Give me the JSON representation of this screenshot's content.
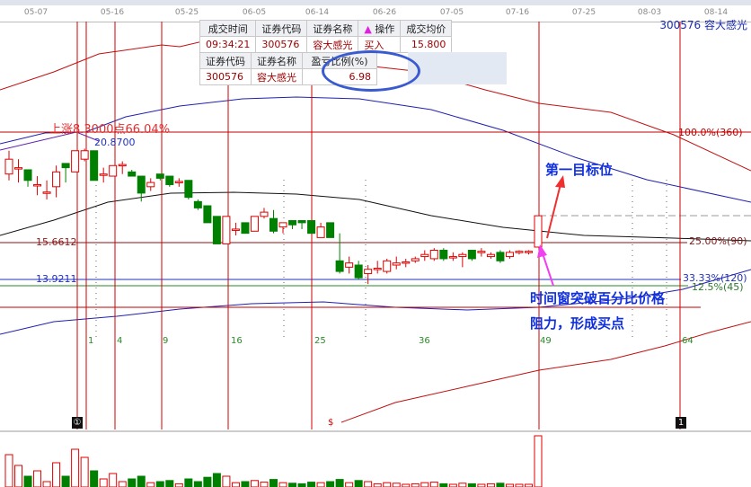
{
  "date_axis": [
    "05-07",
    "05-16",
    "05-25",
    "06-05",
    "06-14",
    "06-26",
    "07-05",
    "07-16",
    "07-25",
    "08-03",
    "08-14"
  ],
  "stock_label": "300576  容大感光",
  "trade_table": {
    "headers": [
      "成交时间",
      "证券代码",
      "证券名称",
      "操作",
      "成交均价"
    ],
    "row": [
      "09:34:21",
      "300576",
      "容大感光",
      "买入",
      "15.800"
    ],
    "op_icon": "triangle-up-icon"
  },
  "pnl_table": {
    "headers": [
      "证券代码",
      "证券名称",
      "盈亏比例(%)"
    ],
    "row": [
      "300576",
      "容大感光",
      "6.98"
    ]
  },
  "annotations": {
    "rise": "上涨8.3000点66.04%",
    "high": "20.8700",
    "level1": "15.6612",
    "level2": "13.9211",
    "pct100": "100.0%(360)",
    "pct25": "25.00%(90)",
    "pct33": "33.33%(120)",
    "pct125": "12.5%(45)"
  },
  "notes": {
    "target": "第一目标位",
    "breakout_1": "时间窗突破百分比价格",
    "breakout_2": "阻力，形成买点"
  },
  "fib_numbers": [
    "1",
    "4",
    "9",
    "16",
    "25",
    "36",
    "49",
    "64"
  ],
  "markers": {
    "circle_one": "①",
    "box_one": "1",
    "dollar": "$"
  },
  "colors": {
    "up": "#e00000",
    "down": "#008000",
    "grid_red": "#c00000",
    "note_blue": "#1030e0"
  },
  "candles": [
    [
      18.9,
      19.6,
      20.0,
      18.6
    ],
    [
      19.2,
      19.2,
      19.6,
      18.5
    ],
    [
      19.1,
      18.6,
      19.1,
      18.3
    ],
    [
      18.4,
      18.4,
      18.8,
      17.9
    ],
    [
      18.0,
      18.05,
      18.6,
      17.7
    ],
    [
      18.3,
      19.0,
      19.3,
      17.8
    ],
    [
      19.4,
      19.2,
      19.4,
      18.5
    ],
    [
      19.0,
      20.0,
      20.0,
      19.0
    ],
    [
      19.6,
      20.0,
      20.1,
      19.5
    ],
    [
      20.0,
      18.6,
      20.0,
      18.6
    ],
    [
      18.9,
      18.9,
      19.2,
      18.5
    ],
    [
      18.8,
      19.3,
      19.3,
      18.8
    ],
    [
      19.3,
      19.35,
      19.5,
      18.9
    ],
    [
      19.0,
      18.8,
      19.1,
      18.8
    ],
    [
      18.8,
      18.0,
      18.8,
      17.6
    ],
    [
      18.3,
      18.5,
      18.7,
      18.1
    ],
    [
      18.9,
      18.7,
      18.9,
      18.6
    ],
    [
      18.8,
      18.4,
      18.8,
      18.3
    ],
    [
      18.5,
      18.55,
      18.7,
      18.3
    ],
    [
      18.6,
      17.8,
      18.6,
      17.7
    ],
    [
      17.6,
      17.3,
      17.7,
      17.2
    ],
    [
      17.4,
      16.6,
      17.4,
      16.6
    ],
    [
      16.9,
      15.6,
      16.9,
      15.6
    ],
    [
      15.6,
      16.9,
      16.9,
      15.6
    ],
    [
      16.3,
      16.3,
      16.6,
      16.0
    ],
    [
      16.6,
      16.1,
      16.6,
      16.1
    ],
    [
      16.2,
      16.9,
      16.9,
      16.2
    ],
    [
      16.9,
      17.1,
      17.3,
      16.8
    ],
    [
      16.8,
      16.2,
      17.2,
      16.1
    ],
    [
      16.4,
      16.6,
      16.6,
      16.1
    ],
    [
      16.7,
      16.5,
      16.7,
      16.3
    ],
    [
      16.7,
      16.6,
      16.7,
      16.3
    ],
    [
      16.7,
      16.1,
      16.7,
      16.1
    ],
    [
      15.9,
      16.4,
      16.6,
      15.9
    ],
    [
      16.6,
      15.9,
      16.6,
      15.9
    ],
    [
      14.8,
      14.3,
      16.1,
      14.2
    ],
    [
      14.5,
      14.7,
      15.0,
      14.2
    ],
    [
      14.6,
      14.0,
      14.8,
      13.9
    ],
    [
      14.2,
      14.4,
      14.6,
      13.7
    ],
    [
      14.4,
      14.45,
      14.8,
      14.2
    ],
    [
      14.3,
      14.8,
      14.9,
      14.2
    ],
    [
      14.6,
      14.7,
      15.0,
      14.4
    ],
    [
      14.7,
      14.75,
      14.9,
      14.5
    ],
    [
      14.8,
      14.9,
      15.0,
      14.7
    ],
    [
      15.0,
      15.1,
      15.3,
      14.8
    ],
    [
      14.9,
      15.3,
      15.4,
      14.8
    ],
    [
      15.3,
      14.9,
      15.4,
      14.8
    ],
    [
      15.0,
      15.0,
      15.2,
      14.8
    ],
    [
      15.0,
      15.1,
      15.2,
      14.5
    ],
    [
      15.3,
      14.9,
      15.3,
      14.8
    ],
    [
      15.2,
      15.25,
      15.4,
      15.0
    ],
    [
      15.0,
      15.1,
      15.2,
      14.9
    ],
    [
      15.2,
      14.8,
      15.3,
      14.7
    ],
    [
      15.0,
      15.2,
      15.3,
      14.9
    ],
    [
      15.2,
      15.25,
      15.3,
      15.1
    ],
    [
      15.2,
      15.25,
      15.3,
      15.1
    ],
    [
      15.45,
      16.93,
      16.93,
      15.45
    ]
  ],
  "volumes": [
    60,
    40,
    20,
    30,
    10,
    45,
    20,
    70,
    55,
    30,
    15,
    25,
    10,
    15,
    20,
    8,
    10,
    12,
    6,
    15,
    10,
    18,
    25,
    20,
    8,
    10,
    12,
    9,
    14,
    8,
    7,
    6,
    9,
    8,
    10,
    14,
    8,
    12,
    10,
    6,
    8,
    7,
    5,
    6,
    8,
    9,
    6,
    5,
    7,
    6,
    5,
    6,
    7,
    5,
    5,
    5,
    95
  ]
}
